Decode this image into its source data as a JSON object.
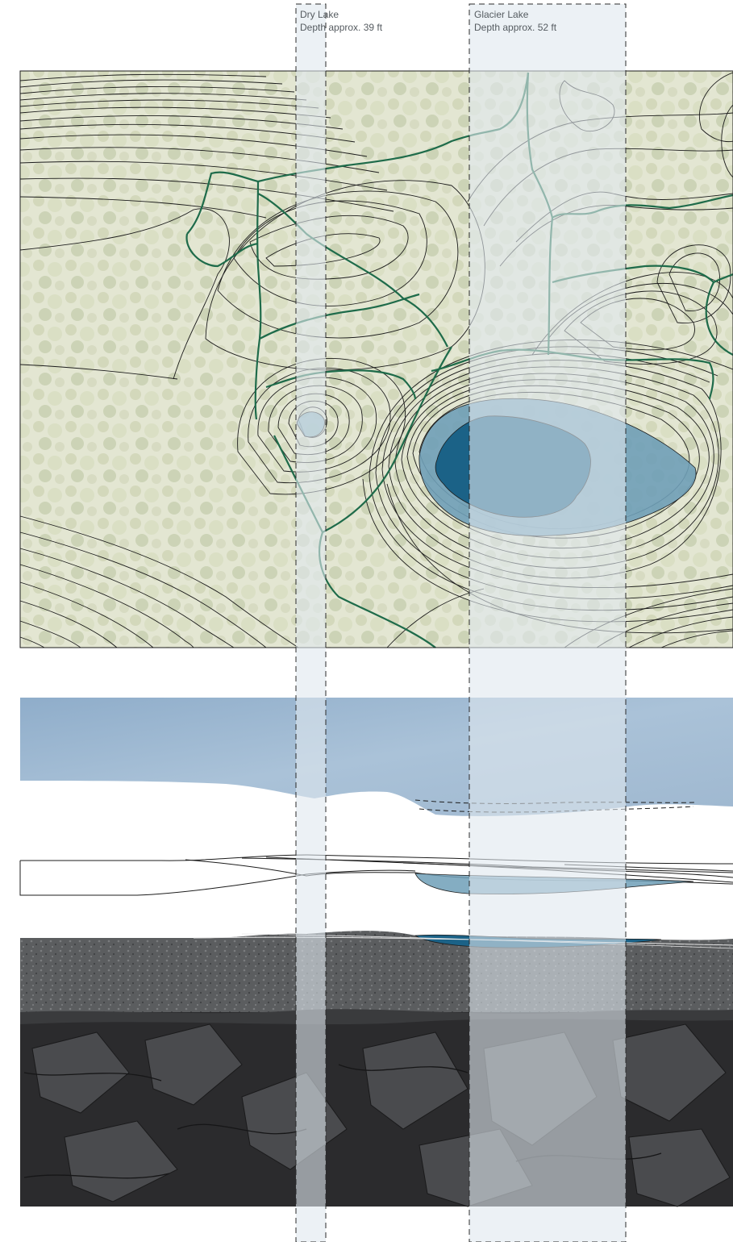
{
  "map": {
    "palette": {
      "forest_tint": "#e6ead6",
      "contour": "#1c1c1c",
      "trail": "#1e6b4a",
      "lake_shallow": "#6f9fb7",
      "lake_deep": "#1b6287",
      "highlight_band": "#dfe8ef",
      "sky": "#9db7d1",
      "rock_upper": "#5c5e60",
      "rock_lower": "#2b2b2d"
    }
  },
  "lakes": [
    {
      "name": "Dry Lake",
      "depth": "Depth approx. 39 ft"
    },
    {
      "name": "Glacier Lake",
      "depth": "Depth approx. 52 ft"
    }
  ]
}
